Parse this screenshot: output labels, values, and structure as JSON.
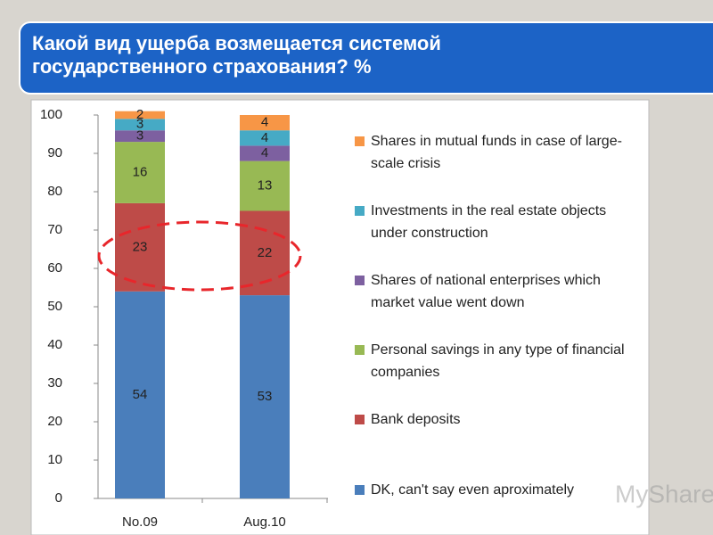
{
  "chart_data": {
    "type": "stacked-bar",
    "title": "Какой вид ущерба возмещается системой государственного страхования? %",
    "categories": [
      "No.09",
      "Aug.10"
    ],
    "series": [
      {
        "name": "DK, can't say even aproximately",
        "color": "#4a7ebb",
        "values": [
          54,
          53
        ]
      },
      {
        "name": "Bank deposits",
        "color": "#be4b48",
        "values": [
          23,
          22
        ]
      },
      {
        "name": "Personal savings in any type of financial companies",
        "color": "#98b954",
        "values": [
          16,
          13
        ]
      },
      {
        "name": "Shares of national enterprises which market value went down",
        "color": "#7d60a0",
        "values": [
          3,
          4
        ]
      },
      {
        "name": "Investments in the real estate objects under construction",
        "color": "#46aac5",
        "values": [
          3,
          4
        ]
      },
      {
        "name": "Shares in mutual funds in case of large-scale crisis",
        "color": "#f79646",
        "values": [
          2,
          4
        ]
      }
    ],
    "ylim": [
      0,
      100
    ],
    "yticks": [
      0,
      10,
      20,
      30,
      40,
      50,
      60,
      70,
      80,
      90,
      100
    ]
  },
  "watermark": "MyShared"
}
